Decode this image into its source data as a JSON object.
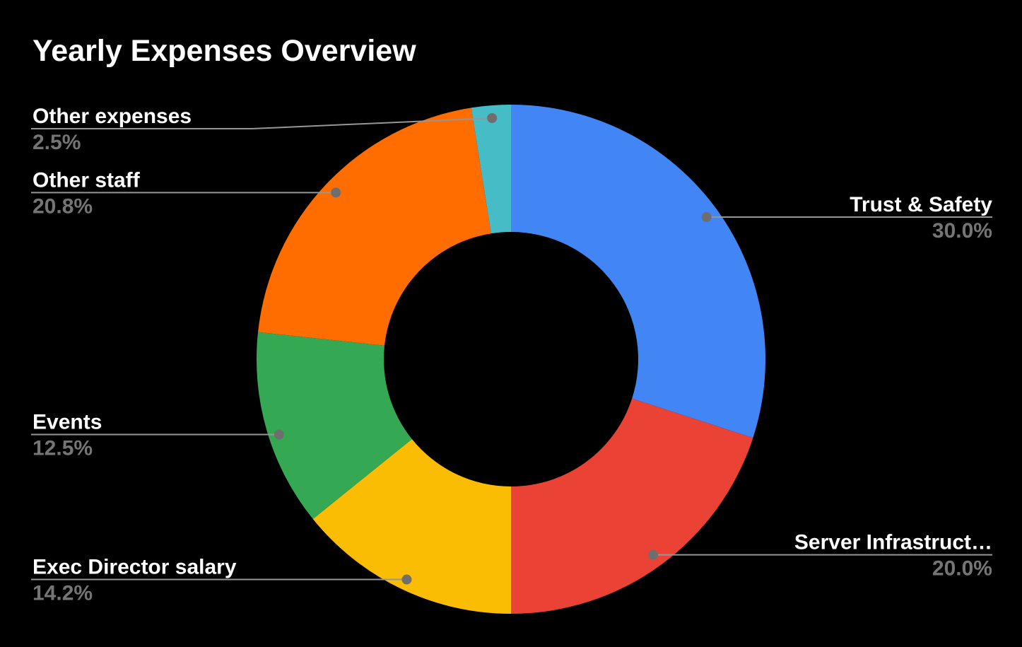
{
  "page": {
    "background": "#000000"
  },
  "chart_data": {
    "type": "pie",
    "subtype": "donut",
    "title": "Yearly Expenses Overview",
    "title_color": "#FFFFFF",
    "background": "#000000",
    "inner_radius_ratio": 0.5,
    "start_angle_deg": 0,
    "direction": "clockwise",
    "legend_position": "outside-labels-with-leader-lines",
    "label_color": "#FFFFFF",
    "percent_color": "#757575",
    "leader_line_color": "#969696",
    "leader_dot_color": "#6E6E6E",
    "slices": [
      {
        "label": "Trust & Safety",
        "value": 30.0,
        "percent_label": "30.0%",
        "color": "#4285F4"
      },
      {
        "label": "Server Infrastruct…",
        "value": 20.0,
        "percent_label": "20.0%",
        "color": "#EA4335"
      },
      {
        "label": "Exec Director salary",
        "value": 14.2,
        "percent_label": "14.2%",
        "color": "#FBBC04"
      },
      {
        "label": "Events",
        "value": 12.5,
        "percent_label": "12.5%",
        "color": "#34A853"
      },
      {
        "label": "Other staff",
        "value": 20.8,
        "percent_label": "20.8%",
        "color": "#FF6D01"
      },
      {
        "label": "Other expenses",
        "value": 2.5,
        "percent_label": "2.5%",
        "color": "#46BDC6"
      }
    ]
  }
}
